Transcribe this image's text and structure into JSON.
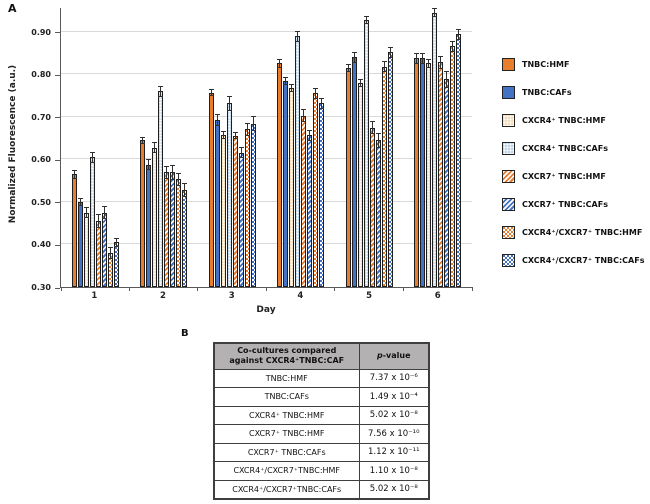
{
  "colors": {
    "orange": "#E87D2E",
    "blue": "#4472C4",
    "tan": "#F3DEBE",
    "light_blue": "#C3D7E9",
    "bar_border": "#1F1F1F",
    "grid": "#D9D9D9",
    "axis": "#595959",
    "error_bar": "#303030",
    "table_header_bg": "#B3B1B1",
    "table_border": "#3F3F3F"
  },
  "panel_a": {
    "label": "A"
  },
  "chart_data": {
    "type": "bar",
    "title": "",
    "xlabel": "Day",
    "ylabel": "Normalized Fluorescence (a.u.)",
    "ylim": [
      0.3,
      0.956
    ],
    "yticks": [
      0.3,
      0.4,
      0.5,
      0.6,
      0.7,
      0.8,
      0.9
    ],
    "grid": true,
    "legend_position": "right",
    "categories": [
      "1",
      "2",
      "3",
      "4",
      "5",
      "6"
    ],
    "series": [
      {
        "name": "TNBC:HMF",
        "pattern": "solid-orange",
        "values": [
          0.565,
          0.645,
          0.757,
          0.826,
          0.815,
          0.838
        ],
        "errors": [
          0.01,
          0.008,
          0.009,
          0.011,
          0.01,
          0.013
        ]
      },
      {
        "name": "TNBC:CAFs",
        "pattern": "solid-blue",
        "values": [
          0.5,
          0.588,
          0.692,
          0.785,
          0.84,
          0.838
        ],
        "errors": [
          0.01,
          0.014,
          0.014,
          0.009,
          0.013,
          0.013
        ]
      },
      {
        "name": "CXCR4⁺ TNBC:HMF",
        "pattern": "dots-tan",
        "values": [
          0.475,
          0.628,
          0.657,
          0.768,
          0.78,
          0.826
        ],
        "errors": [
          0.013,
          0.013,
          0.009,
          0.009,
          0.01,
          0.01
        ]
      },
      {
        "name": "CXCR4⁺ TNBC:CAFs",
        "pattern": "dots-blue",
        "values": [
          0.605,
          0.76,
          0.732,
          0.89,
          0.928,
          0.945
        ],
        "errors": [
          0.013,
          0.013,
          0.018,
          0.013,
          0.009,
          0.01
        ]
      },
      {
        "name": "CXCR7⁺ TNBC:HMF",
        "pattern": "stripes-orange",
        "values": [
          0.455,
          0.57,
          0.656,
          0.703,
          0.675,
          0.828
        ],
        "errors": [
          0.016,
          0.015,
          0.009,
          0.015,
          0.015,
          0.015
        ]
      },
      {
        "name": "CXCR7⁺ TNBC:CAFs",
        "pattern": "stripes-blue",
        "values": [
          0.475,
          0.57,
          0.616,
          0.657,
          0.645,
          0.788
        ],
        "errors": [
          0.016,
          0.018,
          0.013,
          0.013,
          0.018,
          0.02
        ]
      },
      {
        "name": "CXCR4⁺/CXCR7⁺ TNBC:HMF",
        "pattern": "check-orange",
        "values": [
          0.38,
          0.553,
          0.671,
          0.756,
          0.818,
          0.866
        ],
        "errors": [
          0.013,
          0.015,
          0.015,
          0.013,
          0.013,
          0.013
        ]
      },
      {
        "name": "CXCR4⁺/CXCR7⁺ TNBC:CAFs",
        "pattern": "check-blue",
        "values": [
          0.405,
          0.528,
          0.684,
          0.732,
          0.852,
          0.894
        ],
        "errors": [
          0.01,
          0.016,
          0.018,
          0.013,
          0.013,
          0.013
        ]
      }
    ]
  },
  "panel_b": {
    "label": "B",
    "table": {
      "header_col1_line1": "Co-cultures compared",
      "header_col1_line2": "against CXCR4⁺TNBC:CAF",
      "header_p": "p",
      "header_p_rest": "-value",
      "rows": [
        {
          "label": "TNBC:HMF",
          "p": "7.37 x 10⁻⁶"
        },
        {
          "label": "TNBC:CAFs",
          "p": "1.49 x 10⁻⁴"
        },
        {
          "label": "CXCR4⁺ TNBC:HMF",
          "p": "5.02 x 10⁻⁸"
        },
        {
          "label": "CXCR7⁺ TNBC:HMF",
          "p": "7.56 x 10⁻¹⁰"
        },
        {
          "label": "CXCR7⁺ TNBC:CAFs",
          "p": "1.12 x 10⁻¹¹"
        },
        {
          "label": "CXCR4⁺/CXCR7⁺TNBC:HMF",
          "p": "1.10 x 10⁻⁸"
        },
        {
          "label": "CXCR4⁺/CXCR7⁺TNBC:CAFs",
          "p": "5.02 x 10⁻⁸"
        }
      ]
    }
  }
}
